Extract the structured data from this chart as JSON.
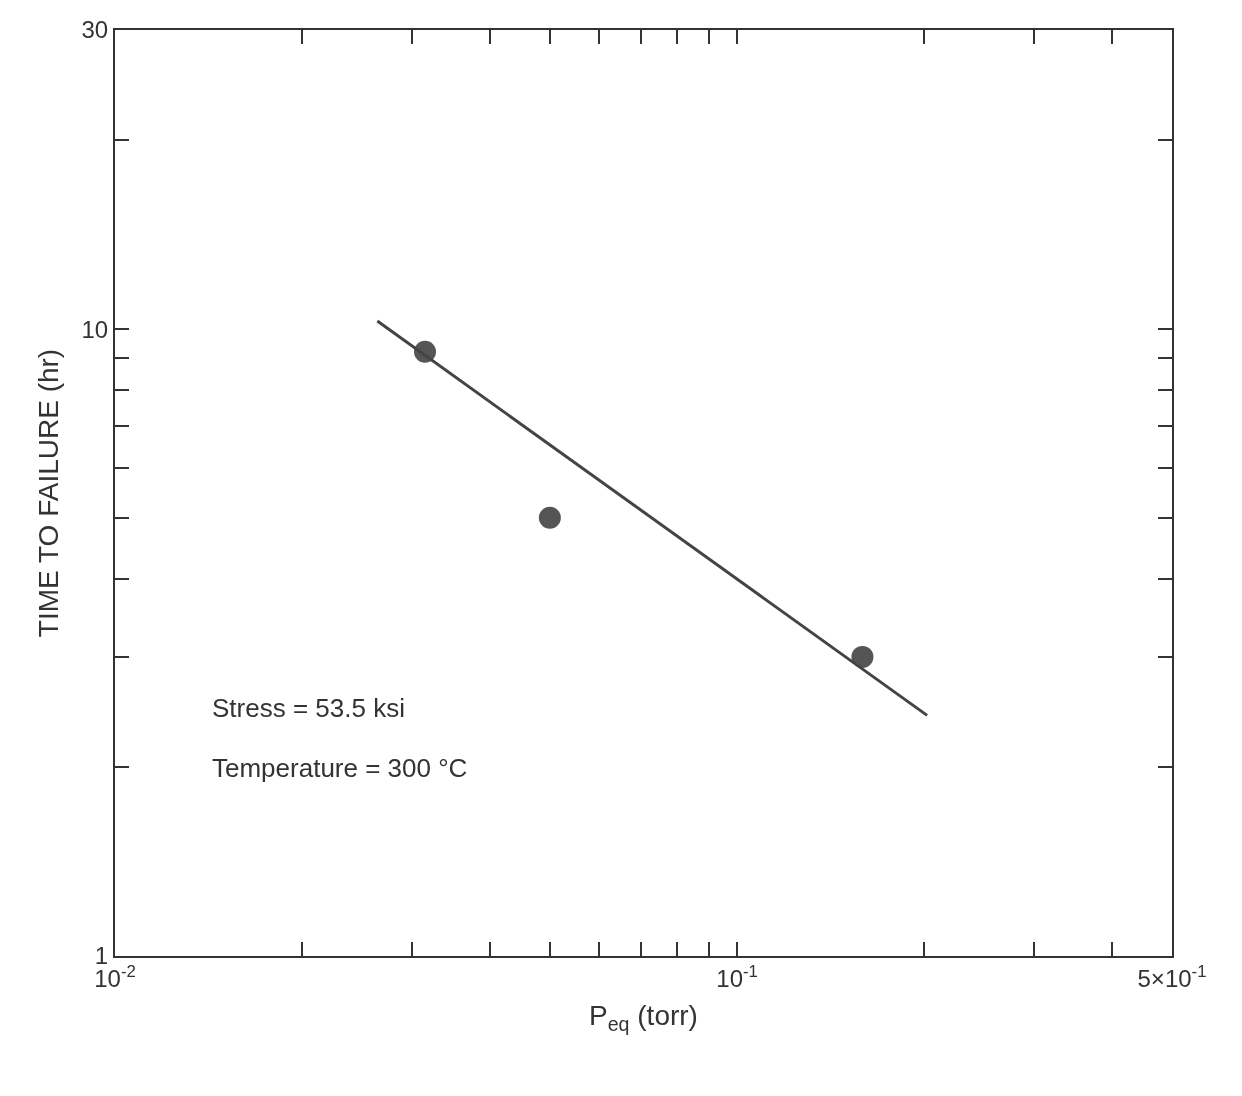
{
  "chart_data": {
    "type": "scatter",
    "xlabel": "P$_{eq}$ (torr)",
    "ylabel": "TIME TO FAILURE (hr)",
    "annotations": [
      "Stress = 53.5 ksi",
      "Temperature = 300 °C"
    ],
    "log": "xy",
    "marker": "circle",
    "xlim": [
      0.01,
      0.5
    ],
    "ylim": [
      1,
      30
    ],
    "xticks": [
      {
        "value": 0.01,
        "label": "10$^{-2}$"
      },
      {
        "value": 0.02,
        "label": null
      },
      {
        "value": 0.03,
        "label": null
      },
      {
        "value": 0.04,
        "label": null
      },
      {
        "value": 0.05,
        "label": null
      },
      {
        "value": 0.06,
        "label": null
      },
      {
        "value": 0.07,
        "label": null
      },
      {
        "value": 0.08,
        "label": null
      },
      {
        "value": 0.09,
        "label": null
      },
      {
        "value": 0.1,
        "label": "10$^{-1}$"
      },
      {
        "value": 0.2,
        "label": null
      },
      {
        "value": 0.3,
        "label": null
      },
      {
        "value": 0.4,
        "label": null
      },
      {
        "value": 0.5,
        "label": "5×10$^{-1}$"
      }
    ],
    "yticks": [
      1,
      {
        "value": 2,
        "label": null
      },
      {
        "value": 3,
        "label": null
      },
      {
        "value": 4,
        "label": null
      },
      {
        "value": 5,
        "label": null
      },
      {
        "value": 6,
        "label": null
      },
      {
        "value": 7,
        "label": null
      },
      {
        "value": 8,
        "label": null
      },
      {
        "value": 9,
        "label": null
      },
      10,
      {
        "value": 20,
        "label": null
      },
      30
    ],
    "series": [
      {
        "color": "#555555",
        "x": [
          0.0315,
          0.05,
          0.159
        ],
        "values": [
          9.2,
          5.0,
          3.0
        ]
      },
      {
        "type": "line",
        "color": "#444444",
        "line_style": "solid",
        "marker": "none",
        "x": [
          0.0264,
          0.202
        ],
        "values": [
          10.3,
          2.42
        ]
      }
    ]
  }
}
